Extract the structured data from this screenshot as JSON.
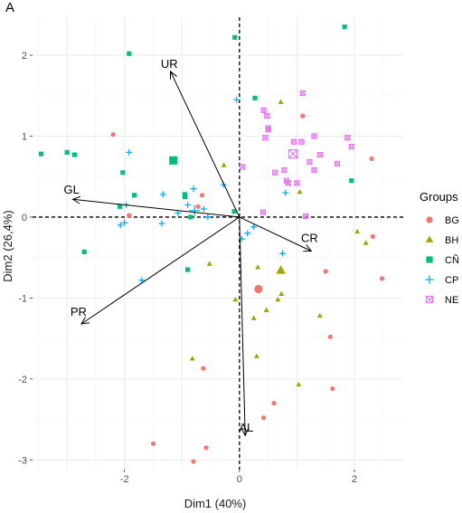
{
  "chart_data": {
    "type": "scatter",
    "panel_tag": "A",
    "xlabel": "Dim1 (40%)",
    "ylabel": "Dim2 (26,4%)",
    "xlim": [
      -3.6,
      2.85
    ],
    "ylim": [
      -3.12,
      2.47
    ],
    "x_ticks": [
      -2,
      0,
      2
    ],
    "x_tick_labels": [
      "-2",
      "0",
      "2"
    ],
    "y_ticks": [
      -3,
      -2,
      -1,
      0,
      1,
      2
    ],
    "y_tick_labels": [
      "-3",
      "-2",
      "-1",
      "0",
      "1",
      "2"
    ],
    "grid": true,
    "reference_lines": {
      "x": 0,
      "y": 0,
      "style": "dashed"
    },
    "legend": {
      "title": "Groups",
      "placement": "right"
    },
    "colors": {
      "BG": "#F8766D",
      "BH": "#A3A500",
      "CÑ": "#00BF7D",
      "CP": "#00B0F6",
      "NE": "#E76BF3"
    },
    "series": [
      {
        "name": "BG",
        "marker": "circle",
        "points": [
          [
            -2.2,
            1.02
          ],
          [
            -1.92,
            0.02
          ],
          [
            -0.65,
            0.27
          ],
          [
            -0.72,
            0.13
          ],
          [
            1.1,
            1.25
          ],
          [
            2.3,
            0.72
          ],
          [
            1.5,
            -0.67
          ],
          [
            1.58,
            -1.48
          ],
          [
            2.32,
            -0.24
          ],
          [
            2.48,
            -0.76
          ],
          [
            -0.63,
            -1.87
          ],
          [
            -1.5,
            -2.8
          ],
          [
            -0.58,
            -2.85
          ],
          [
            -0.8,
            -3.02
          ],
          [
            0.6,
            -2.3
          ],
          [
            0.42,
            -2.48
          ],
          [
            1.62,
            -2.12
          ]
        ],
        "centroid": [
          0.33,
          -0.89
        ]
      },
      {
        "name": "BH",
        "marker": "triangle",
        "points": [
          [
            0.72,
            1.42
          ],
          [
            -0.27,
            0.64
          ],
          [
            1.05,
            0.31
          ],
          [
            -0.52,
            -0.58
          ],
          [
            0.32,
            -0.62
          ],
          [
            0.73,
            -0.95
          ],
          [
            0.67,
            -1.02
          ],
          [
            0.47,
            -1.15
          ],
          [
            0.25,
            -1.25
          ],
          [
            1.4,
            -1.22
          ],
          [
            2.05,
            -0.18
          ],
          [
            2.2,
            -0.32
          ],
          [
            -0.07,
            -1.02
          ],
          [
            -0.82,
            -1.75
          ],
          [
            0.3,
            -1.72
          ],
          [
            1.03,
            -2.07
          ]
        ],
        "centroid": [
          0.72,
          -0.66
        ]
      },
      {
        "name": "CÑ",
        "marker": "square",
        "points": [
          [
            -3.45,
            0.78
          ],
          [
            -3.0,
            0.8
          ],
          [
            -2.87,
            0.77
          ],
          [
            -1.92,
            2.02
          ],
          [
            -2.03,
            0.55
          ],
          [
            -1.83,
            0.27
          ],
          [
            -2.08,
            0.13
          ],
          [
            -2.7,
            -0.43
          ],
          [
            -0.95,
            0.28
          ],
          [
            -0.9,
            -0.65
          ],
          [
            -0.08,
            2.22
          ],
          [
            1.83,
            2.35
          ],
          [
            0.27,
            1.47
          ],
          [
            1.95,
            0.45
          ],
          [
            -0.85,
            0.0
          ],
          [
            -0.09,
            0.07
          ],
          [
            -0.95,
            0.25
          ]
        ],
        "centroid": [
          -1.15,
          0.7
        ]
      },
      {
        "name": "CP",
        "marker": "plus",
        "points": [
          [
            -1.92,
            0.8
          ],
          [
            -1.97,
            0.15
          ],
          [
            -2.07,
            -0.1
          ],
          [
            -2.0,
            -0.07
          ],
          [
            -1.33,
            0.28
          ],
          [
            -1.35,
            -0.08
          ],
          [
            -1.07,
            0.05
          ],
          [
            -0.9,
            0.15
          ],
          [
            -0.8,
            0.35
          ],
          [
            -0.55,
            0.0
          ],
          [
            -0.62,
            0.1
          ],
          [
            -0.28,
            0.4
          ],
          [
            -0.05,
            1.45
          ],
          [
            0.04,
            -0.27
          ],
          [
            0.14,
            -0.2
          ],
          [
            0.25,
            -0.12
          ],
          [
            0.8,
            0.3
          ],
          [
            0.75,
            -0.45
          ],
          [
            -1.7,
            -0.78
          ]
        ],
        "centroid": [
          -0.78,
          0.08
        ]
      },
      {
        "name": "NE",
        "marker": "square-x",
        "points": [
          [
            1.1,
            1.53
          ],
          [
            0.42,
            1.32
          ],
          [
            0.48,
            1.25
          ],
          [
            0.5,
            1.1
          ],
          [
            0.95,
            0.93
          ],
          [
            0.5,
            1.08
          ],
          [
            0.45,
            0.98
          ],
          [
            1.3,
            1.0
          ],
          [
            1.4,
            0.77
          ],
          [
            1.08,
            0.93
          ],
          [
            1.3,
            0.58
          ],
          [
            1.88,
            0.98
          ],
          [
            1.95,
            0.87
          ],
          [
            1.7,
            0.66
          ],
          [
            0.62,
            0.55
          ],
          [
            0.82,
            0.45
          ],
          [
            0.85,
            0.42
          ],
          [
            1.0,
            0.42
          ],
          [
            1.22,
            0.68
          ],
          [
            0.78,
            0.58
          ],
          [
            0.05,
            0.62
          ],
          [
            0.41,
            0.06
          ],
          [
            1.15,
            0.01
          ]
        ],
        "centroid": [
          0.93,
          0.78
        ]
      }
    ],
    "variable_vectors": [
      {
        "name": "UR",
        "end": [
          -1.2,
          1.8
        ],
        "label_pos": [
          -1.22,
          1.88
        ]
      },
      {
        "name": "GL",
        "end": [
          -2.9,
          0.22
        ],
        "label_pos": [
          -2.92,
          0.33
        ]
      },
      {
        "name": "CR",
        "end": [
          1.25,
          -0.42
        ],
        "label_pos": [
          1.22,
          -0.27
        ]
      },
      {
        "name": "PR",
        "end": [
          -2.75,
          -1.32
        ],
        "label_pos": [
          -2.8,
          -1.18
        ]
      },
      {
        "name": "AL",
        "end": [
          0.1,
          -2.7
        ],
        "label_pos": [
          0.12,
          -2.61
        ]
      }
    ]
  }
}
